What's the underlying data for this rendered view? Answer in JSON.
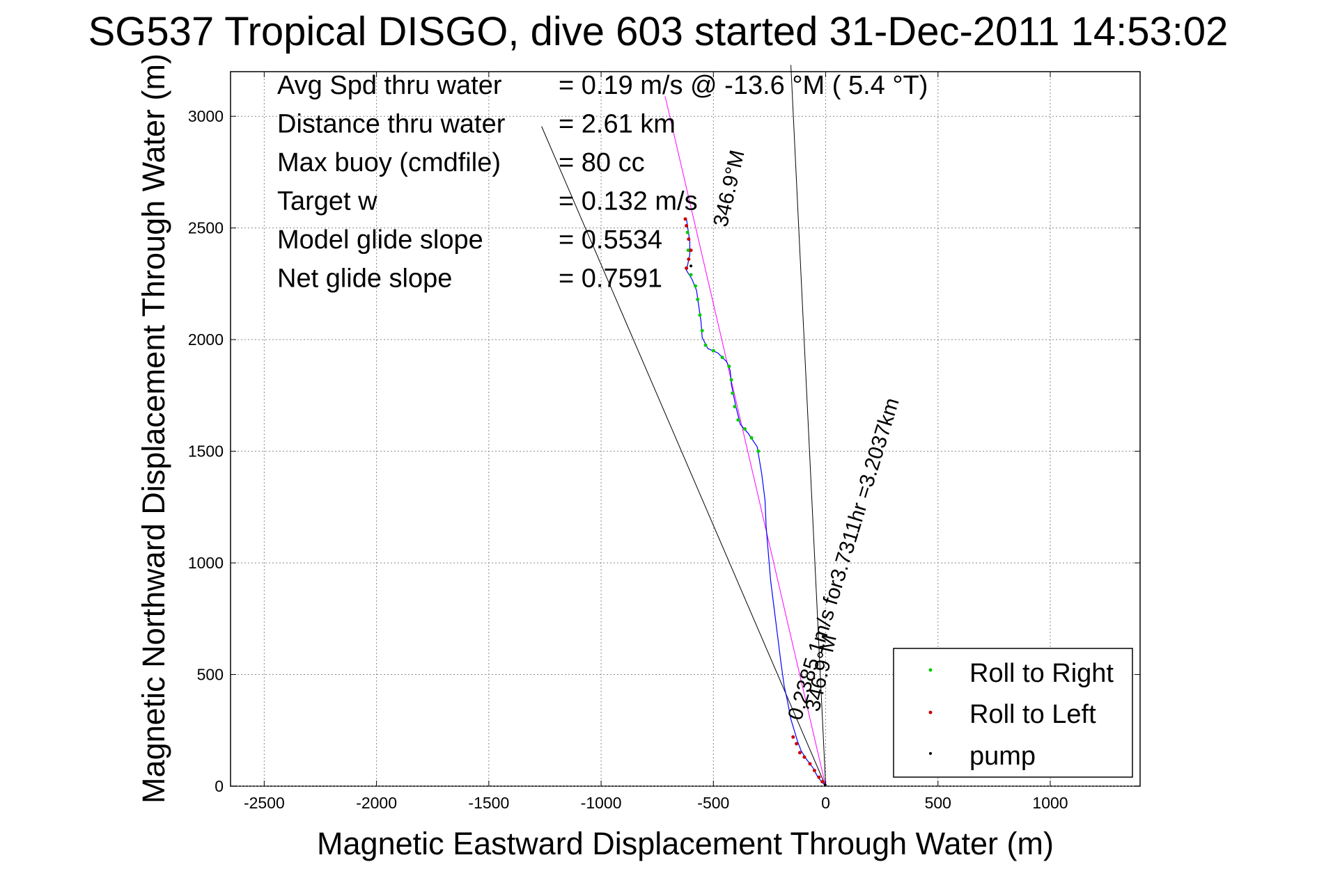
{
  "chart_data": {
    "type": "scatter",
    "title": "SG537 Tropical DISGO, dive 603 started 31-Dec-2011 14:53:02",
    "xlabel": "Magnetic Eastward Displacement Through Water (m)",
    "ylabel": "Magnetic Northward Displacement Through Water (m)",
    "xlim": [
      -2650,
      1400
    ],
    "ylim": [
      0,
      3200
    ],
    "xticks": [
      -2500,
      -2000,
      -1500,
      -1000,
      -500,
      0,
      500,
      1000
    ],
    "xtick_labels": [
      "-2500",
      "-2000",
      "-1500",
      "-1000",
      "-500",
      "0",
      "500",
      "1000"
    ],
    "yticks": [
      0,
      500,
      1000,
      1500,
      2000,
      2500,
      3000
    ],
    "ytick_labels": [
      "0",
      "500",
      "1000",
      "1500",
      "2000",
      "2500",
      "3000"
    ],
    "grid": true,
    "legend_position": "bottom-right",
    "legend": [
      "Roll to Right",
      "Roll to Left",
      "pump"
    ],
    "stats": [
      {
        "label": "Avg Spd thru water",
        "value": "=  0.19 m/s @ -13.6 °M (  5.4 °T)"
      },
      {
        "label": "Distance thru water",
        "value": "=  2.61 km"
      },
      {
        "label": "Max buoy (cmdfile)",
        "value": "= 80 cc"
      },
      {
        "label": "Target w",
        "value": "= 0.132 m/s"
      },
      {
        "label": "Model glide slope",
        "value": "= 0.5534"
      },
      {
        "label": "Net glide slope",
        "value": "= 0.7591"
      }
    ],
    "annotations": [
      {
        "text": "0.2385 1m/s for3.7311hr =3.2037km",
        "x": -110,
        "y": 290,
        "angle_deg": -73
      },
      {
        "text": "346.9°M",
        "x": -30,
        "y": 330,
        "angle_deg": -77
      },
      {
        "text": "346.9°M",
        "x": -440,
        "y": 2500,
        "angle_deg": -77
      }
    ],
    "lines": [
      {
        "name": "",
        "color": "#000000",
        "points": [
          [
            0,
            0
          ],
          [
            -1265,
            2955
          ]
        ]
      },
      {
        "name": "",
        "color": "#000000",
        "points": [
          [
            0,
            0
          ],
          [
            -155,
            3230
          ]
        ]
      },
      {
        "name": "",
        "color": "#ff00ff",
        "points": [
          [
            0,
            0
          ],
          [
            -715,
            3090
          ]
        ]
      }
    ],
    "track": [
      [
        0,
        0
      ],
      [
        -35,
        40
      ],
      [
        -55,
        80
      ],
      [
        -85,
        120
      ],
      [
        -110,
        160
      ],
      [
        -125,
        200
      ],
      [
        -140,
        250
      ],
      [
        -155,
        300
      ],
      [
        -170,
        380
      ],
      [
        -185,
        450
      ],
      [
        -200,
        560
      ],
      [
        -215,
        680
      ],
      [
        -230,
        800
      ],
      [
        -245,
        920
      ],
      [
        -255,
        1040
      ],
      [
        -265,
        1160
      ],
      [
        -270,
        1280
      ],
      [
        -285,
        1400
      ],
      [
        -305,
        1520
      ],
      [
        -345,
        1580
      ],
      [
        -380,
        1620
      ],
      [
        -400,
        1700
      ],
      [
        -420,
        1800
      ],
      [
        -425,
        1860
      ],
      [
        -440,
        1900
      ],
      [
        -480,
        1940
      ],
      [
        -525,
        1960
      ],
      [
        -550,
        2010
      ],
      [
        -555,
        2080
      ],
      [
        -565,
        2150
      ],
      [
        -575,
        2220
      ],
      [
        -595,
        2270
      ],
      [
        -620,
        2310
      ],
      [
        -605,
        2380
      ],
      [
        -605,
        2440
      ],
      [
        -620,
        2540
      ]
    ],
    "roll_right_points": [
      [
        -300,
        1500
      ],
      [
        -330,
        1560
      ],
      [
        -360,
        1600
      ],
      [
        -390,
        1640
      ],
      [
        -405,
        1700
      ],
      [
        -415,
        1760
      ],
      [
        -420,
        1820
      ],
      [
        -430,
        1880
      ],
      [
        -460,
        1920
      ],
      [
        -500,
        1950
      ],
      [
        -535,
        1975
      ],
      [
        -550,
        2040
      ],
      [
        -560,
        2110
      ],
      [
        -570,
        2180
      ],
      [
        -580,
        2240
      ],
      [
        -600,
        2290
      ],
      [
        -612,
        2400
      ],
      [
        -615,
        2480
      ]
    ],
    "roll_left_points": [
      [
        -15,
        20
      ],
      [
        -30,
        40
      ],
      [
        -50,
        70
      ],
      [
        -70,
        100
      ],
      [
        -95,
        130
      ],
      [
        -115,
        150
      ],
      [
        -130,
        190
      ],
      [
        -145,
        220
      ],
      [
        -620,
        2320
      ],
      [
        -610,
        2360
      ],
      [
        -600,
        2400
      ],
      [
        -610,
        2450
      ],
      [
        -620,
        2510
      ],
      [
        -625,
        2540
      ]
    ],
    "pump_points": [
      [
        -2,
        5
      ],
      [
        -600,
        2330
      ]
    ]
  },
  "colors": {
    "roll_right": "#00cc00",
    "roll_left": "#cc0000",
    "pump": "#000000",
    "track": "#0000ff",
    "heading": "#ff00ff"
  }
}
